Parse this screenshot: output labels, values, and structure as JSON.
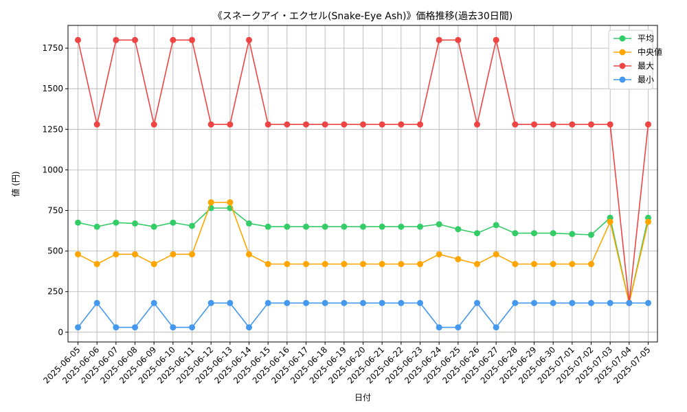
{
  "chart_data": {
    "type": "line",
    "title": "《スネークアイ・エクセル(Snake-Eye Ash)》価格推移(過去30日間)",
    "xlabel": "日付",
    "ylabel": "値 (円)",
    "ylim": [
      -60,
      1890
    ],
    "yticks": [
      0,
      250,
      500,
      750,
      1000,
      1250,
      1500,
      1750
    ],
    "ytick_labels": [
      "0",
      "250",
      "500",
      "750",
      "1000",
      "1250",
      "1500",
      "1750"
    ],
    "grid": true,
    "legend_position": "top-right",
    "categories": [
      "2025-06-05",
      "2025-06-06",
      "2025-06-07",
      "2025-06-08",
      "2025-06-09",
      "2025-06-10",
      "2025-06-11",
      "2025-06-12",
      "2025-06-13",
      "2025-06-14",
      "2025-06-15",
      "2025-06-16",
      "2025-06-17",
      "2025-06-18",
      "2025-06-19",
      "2025-06-20",
      "2025-06-21",
      "2025-06-22",
      "2025-06-23",
      "2025-06-24",
      "2025-06-25",
      "2025-06-26",
      "2025-06-27",
      "2025-06-28",
      "2025-06-29",
      "2025-06-30",
      "2025-07-01",
      "2025-07-02",
      "2025-07-03",
      "2025-07-04",
      "2025-07-05"
    ],
    "series": [
      {
        "name": "平均",
        "key": "mean",
        "color": "#33cc66",
        "values": [
          675,
          650,
          675,
          670,
          650,
          675,
          655,
          765,
          765,
          670,
          650,
          650,
          650,
          650,
          650,
          650,
          650,
          650,
          650,
          665,
          635,
          610,
          660,
          610,
          610,
          610,
          605,
          600,
          705,
          180,
          705
        ]
      },
      {
        "name": "中央値",
        "key": "median",
        "color": "#ffa500",
        "values": [
          480,
          420,
          480,
          480,
          420,
          480,
          480,
          800,
          800,
          480,
          420,
          420,
          420,
          420,
          420,
          420,
          420,
          420,
          420,
          480,
          450,
          420,
          480,
          420,
          420,
          420,
          420,
          420,
          680,
          180,
          680
        ]
      },
      {
        "name": "最大",
        "key": "max",
        "color": "#ee4444",
        "values": [
          1800,
          1280,
          1800,
          1800,
          1280,
          1800,
          1800,
          1280,
          1280,
          1800,
          1280,
          1280,
          1280,
          1280,
          1280,
          1280,
          1280,
          1280,
          1280,
          1800,
          1800,
          1280,
          1800,
          1280,
          1280,
          1280,
          1280,
          1280,
          1280,
          180,
          1280
        ]
      },
      {
        "name": "最小",
        "key": "min",
        "color": "#4499ee",
        "values": [
          30,
          180,
          30,
          30,
          180,
          30,
          30,
          180,
          180,
          30,
          180,
          180,
          180,
          180,
          180,
          180,
          180,
          180,
          180,
          30,
          30,
          180,
          30,
          180,
          180,
          180,
          180,
          180,
          180,
          180,
          180
        ]
      }
    ]
  }
}
